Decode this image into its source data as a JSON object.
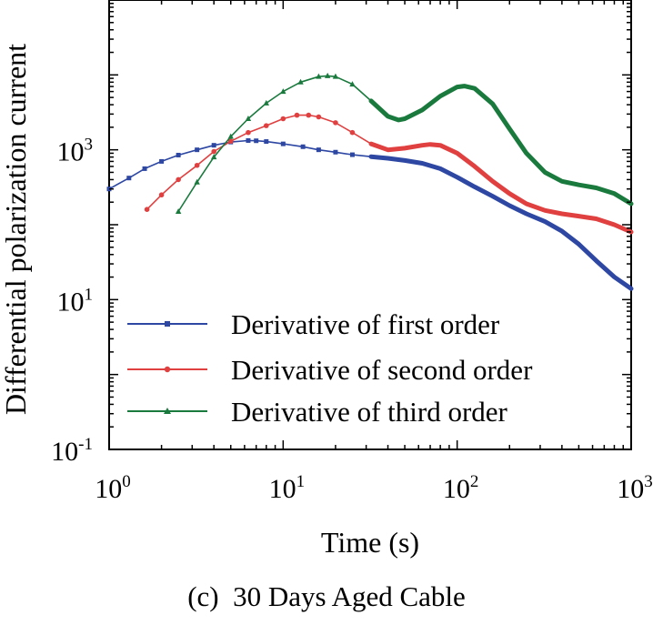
{
  "chart_data": {
    "type": "line",
    "title": "",
    "caption": "(c)  30 Days Aged Cable",
    "xlabel": "Time (s)",
    "ylabel": "Differential polarization current",
    "xscale": "log",
    "yscale": "log",
    "xlim": [
      1,
      1000
    ],
    "ylim": [
      0.1,
      100000
    ],
    "x_ticks": [
      {
        "value": 1,
        "base": "10",
        "exp": "0"
      },
      {
        "value": 10,
        "base": "10",
        "exp": "1"
      },
      {
        "value": 100,
        "base": "10",
        "exp": "2"
      },
      {
        "value": 1000,
        "base": "10",
        "exp": "3"
      }
    ],
    "y_ticks": [
      {
        "value": 0.1,
        "base": "10",
        "exp": "-1"
      },
      {
        "value": 10,
        "base": "10",
        "exp": "1"
      },
      {
        "value": 1000,
        "base": "10",
        "exp": "3"
      }
    ],
    "legend_position": "lower-left",
    "series": [
      {
        "name": "Derivative of first order",
        "color": "#2d47a3",
        "marker": "square",
        "x": [
          1,
          1.3,
          1.6,
          2,
          2.5,
          3.2,
          4,
          5,
          6.3,
          7,
          8,
          10,
          13,
          16,
          20,
          25,
          32,
          40,
          50,
          63,
          80,
          100,
          126,
          160,
          200,
          250,
          320,
          400,
          500,
          630,
          800,
          1000
        ],
        "y": [
          300,
          420,
          560,
          700,
          850,
          1000,
          1150,
          1270,
          1330,
          1320,
          1290,
          1200,
          1100,
          1000,
          930,
          860,
          810,
          770,
          720,
          660,
          560,
          430,
          320,
          240,
          180,
          140,
          110,
          82,
          55,
          33,
          20,
          14
        ]
      },
      {
        "name": "Derivative of second order",
        "color": "#e04040",
        "marker": "circle",
        "x": [
          1.65,
          2,
          2.5,
          3.2,
          4,
          5,
          6.3,
          8,
          10,
          12,
          14,
          16,
          20,
          25,
          32,
          40,
          50,
          63,
          70,
          80,
          100,
          126,
          160,
          200,
          250,
          320,
          400,
          500,
          630,
          800,
          1000
        ],
        "y": [
          160,
          250,
          400,
          620,
          950,
          1300,
          1700,
          2100,
          2600,
          2900,
          2900,
          2750,
          2300,
          1700,
          1200,
          1000,
          1050,
          1150,
          1180,
          1150,
          900,
          600,
          380,
          260,
          190,
          155,
          140,
          130,
          120,
          100,
          80
        ]
      },
      {
        "name": "Derivative of third order",
        "color": "#1a7a3e",
        "marker": "triangle",
        "x": [
          2.5,
          3.2,
          4,
          5,
          6.3,
          8,
          10,
          12.6,
          16,
          18,
          20,
          25,
          32,
          40,
          46,
          50,
          63,
          80,
          100,
          110,
          126,
          160,
          200,
          250,
          320,
          400,
          500,
          630,
          800,
          1000
        ],
        "y": [
          150,
          370,
          800,
          1500,
          2600,
          4200,
          6000,
          8000,
          9500,
          9700,
          9500,
          7500,
          4500,
          2800,
          2500,
          2600,
          3400,
          5200,
          6900,
          7100,
          6600,
          4100,
          1900,
          900,
          500,
          380,
          340,
          310,
          260,
          190
        ]
      }
    ]
  }
}
